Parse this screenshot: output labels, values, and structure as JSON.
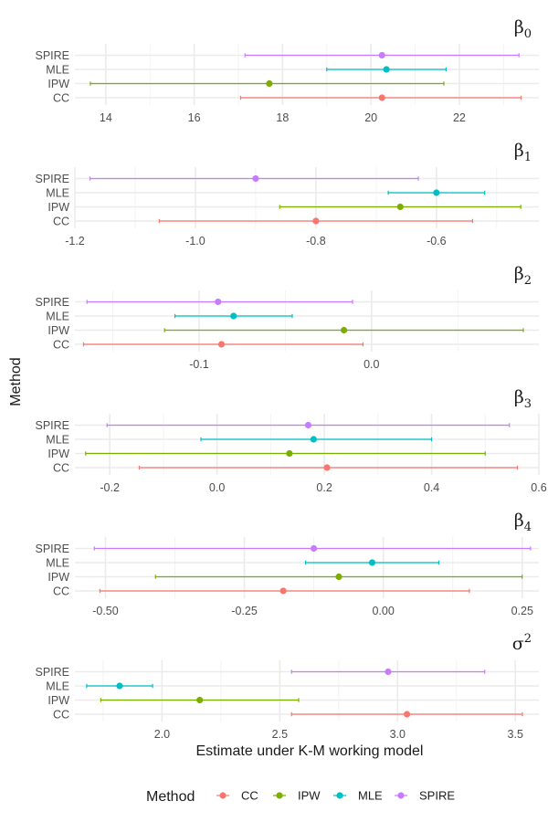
{
  "chart_data": {
    "type": "forest",
    "xlabel": "Estimate under K-M working model",
    "ylabel": "Method",
    "methods": [
      "SPIRE",
      "MLE",
      "IPW",
      "CC"
    ],
    "legend": {
      "title": "Method",
      "position": "bottom",
      "entries": [
        "CC",
        "IPW",
        "MLE",
        "SPIRE"
      ]
    },
    "colors": {
      "CC": "#F8766D",
      "IPW": "#7CAE00",
      "MLE": "#00BFC4",
      "SPIRE": "#C77CFF"
    },
    "panels": [
      {
        "title_base": "β",
        "title_sub": "0",
        "title_sup": "",
        "xlim": [
          13.3,
          23.8
        ],
        "ticks": [
          14,
          16,
          18,
          20,
          22
        ],
        "tick_labels": [
          "14",
          "16",
          "18",
          "20",
          "22"
        ],
        "minor_ticks": [
          15,
          17,
          19,
          21,
          23
        ],
        "rows": [
          {
            "method": "SPIRE",
            "est": 20.25,
            "lo": 17.15,
            "hi": 23.35
          },
          {
            "method": "MLE",
            "est": 20.35,
            "lo": 19.0,
            "hi": 21.7
          },
          {
            "method": "IPW",
            "est": 17.7,
            "lo": 13.65,
            "hi": 21.65
          },
          {
            "method": "CC",
            "est": 20.25,
            "lo": 17.05,
            "hi": 23.4
          }
        ]
      },
      {
        "title_base": "β",
        "title_sub": "1",
        "title_sup": "",
        "xlim": [
          -1.2,
          -0.43
        ],
        "ticks": [
          -1.2,
          -1.0,
          -0.8,
          -0.6
        ],
        "tick_labels": [
          "-1.2",
          "-1.0",
          "-0.8",
          "-0.6"
        ],
        "minor_ticks": [
          -1.1,
          -0.9,
          -0.7,
          -0.5
        ],
        "rows": [
          {
            "method": "SPIRE",
            "est": -0.9,
            "lo": -1.175,
            "hi": -0.63
          },
          {
            "method": "MLE",
            "est": -0.6,
            "lo": -0.68,
            "hi": -0.52
          },
          {
            "method": "IPW",
            "est": -0.66,
            "lo": -0.86,
            "hi": -0.46
          },
          {
            "method": "CC",
            "est": -0.8,
            "lo": -1.06,
            "hi": -0.54
          }
        ]
      },
      {
        "title_base": "β",
        "title_sub": "2",
        "title_sup": "",
        "xlim": [
          -0.172,
          0.097
        ],
        "ticks": [
          -0.1,
          0.0
        ],
        "tick_labels": [
          "-0.1",
          "0.0"
        ],
        "minor_ticks": [
          -0.15,
          -0.05,
          0.05
        ],
        "rows": [
          {
            "method": "SPIRE",
            "est": -0.089,
            "lo": -0.165,
            "hi": -0.011
          },
          {
            "method": "MLE",
            "est": -0.08,
            "lo": -0.114,
            "hi": -0.046
          },
          {
            "method": "IPW",
            "est": -0.016,
            "lo": -0.12,
            "hi": 0.088
          },
          {
            "method": "CC",
            "est": -0.087,
            "lo": -0.167,
            "hi": -0.005
          }
        ]
      },
      {
        "title_base": "β",
        "title_sub": "3",
        "title_sup": "",
        "xlim": [
          -0.265,
          0.6
        ],
        "ticks": [
          -0.2,
          0.0,
          0.2,
          0.4,
          0.6
        ],
        "tick_labels": [
          "-0.2",
          "0.0",
          "0.2",
          "0.4",
          "0.6"
        ],
        "minor_ticks": [
          -0.1,
          0.1,
          0.3,
          0.5
        ],
        "rows": [
          {
            "method": "SPIRE",
            "est": 0.17,
            "lo": -0.205,
            "hi": 0.545
          },
          {
            "method": "MLE",
            "est": 0.18,
            "lo": -0.03,
            "hi": 0.4
          },
          {
            "method": "IPW",
            "est": 0.135,
            "lo": -0.245,
            "hi": 0.5
          },
          {
            "method": "CC",
            "est": 0.205,
            "lo": -0.145,
            "hi": 0.56
          }
        ]
      },
      {
        "title_base": "β",
        "title_sub": "4",
        "title_sup": "",
        "xlim": [
          -0.555,
          0.28
        ],
        "ticks": [
          -0.5,
          -0.25,
          0.0,
          0.25
        ],
        "tick_labels": [
          "-0.50",
          "-0.25",
          "0.00",
          "0.25"
        ],
        "minor_ticks": [
          -0.375,
          -0.125,
          0.125
        ],
        "rows": [
          {
            "method": "SPIRE",
            "est": -0.125,
            "lo": -0.52,
            "hi": 0.265
          },
          {
            "method": "MLE",
            "est": -0.02,
            "lo": -0.14,
            "hi": 0.1
          },
          {
            "method": "IPW",
            "est": -0.08,
            "lo": -0.41,
            "hi": 0.25
          },
          {
            "method": "CC",
            "est": -0.18,
            "lo": -0.51,
            "hi": 0.155
          }
        ]
      },
      {
        "title_base": "σ",
        "title_sub": "",
        "title_sup": "2",
        "xlim": [
          1.63,
          3.6
        ],
        "ticks": [
          2.0,
          2.5,
          3.0,
          3.5
        ],
        "tick_labels": [
          "2.0",
          "2.5",
          "3.0",
          "3.5"
        ],
        "minor_ticks": [
          1.75,
          2.25,
          2.75,
          3.25
        ],
        "rows": [
          {
            "method": "SPIRE",
            "est": 2.96,
            "lo": 2.55,
            "hi": 3.37
          },
          {
            "method": "MLE",
            "est": 1.82,
            "lo": 1.68,
            "hi": 1.96
          },
          {
            "method": "IPW",
            "est": 2.16,
            "lo": 1.74,
            "hi": 2.58
          },
          {
            "method": "CC",
            "est": 3.04,
            "lo": 2.55,
            "hi": 3.53
          }
        ]
      }
    ]
  }
}
